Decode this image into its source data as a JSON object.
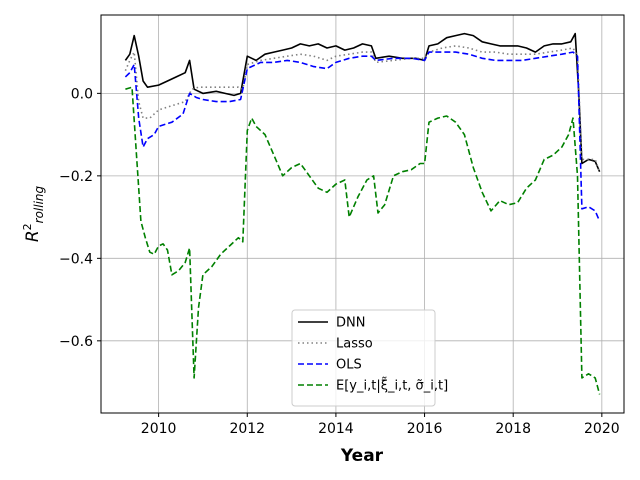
{
  "chart_data": {
    "type": "line",
    "xlabel": "Year",
    "ylabel": "R²_rolling",
    "xlim": [
      2008.7,
      2020.5
    ],
    "ylim": [
      -0.775,
      0.19
    ],
    "x_ticks": [
      2010,
      2012,
      2014,
      2016,
      2018,
      2020
    ],
    "y_ticks": [
      0.0,
      -0.2,
      -0.4,
      -0.6
    ],
    "y_tick_labels": [
      "0.0",
      "−0.2",
      "−0.4",
      "−0.6"
    ],
    "grid": true,
    "legend_position": "lower-center",
    "series": [
      {
        "name": "DNN",
        "color": "#000000",
        "dash": "solid",
        "points": [
          [
            2009.25,
            0.08
          ],
          [
            2009.35,
            0.095
          ],
          [
            2009.45,
            0.14
          ],
          [
            2009.55,
            0.09
          ],
          [
            2009.65,
            0.03
          ],
          [
            2009.75,
            0.015
          ],
          [
            2010.0,
            0.02
          ],
          [
            2010.2,
            0.03
          ],
          [
            2010.4,
            0.04
          ],
          [
            2010.6,
            0.05
          ],
          [
            2010.7,
            0.08
          ],
          [
            2010.8,
            0.01
          ],
          [
            2011.0,
            0.0
          ],
          [
            2011.3,
            0.005
          ],
          [
            2011.5,
            0.0
          ],
          [
            2011.7,
            -0.005
          ],
          [
            2011.85,
            0.0
          ],
          [
            2012.0,
            0.09
          ],
          [
            2012.2,
            0.08
          ],
          [
            2012.4,
            0.095
          ],
          [
            2012.6,
            0.1
          ],
          [
            2012.8,
            0.105
          ],
          [
            2013.0,
            0.11
          ],
          [
            2013.2,
            0.12
          ],
          [
            2013.4,
            0.115
          ],
          [
            2013.6,
            0.12
          ],
          [
            2013.8,
            0.11
          ],
          [
            2014.0,
            0.115
          ],
          [
            2014.2,
            0.105
          ],
          [
            2014.4,
            0.11
          ],
          [
            2014.6,
            0.12
          ],
          [
            2014.8,
            0.115
          ],
          [
            2014.9,
            0.085
          ],
          [
            2015.2,
            0.09
          ],
          [
            2015.5,
            0.085
          ],
          [
            2015.8,
            0.085
          ],
          [
            2016.0,
            0.08
          ],
          [
            2016.1,
            0.115
          ],
          [
            2016.3,
            0.12
          ],
          [
            2016.5,
            0.135
          ],
          [
            2016.7,
            0.14
          ],
          [
            2016.9,
            0.145
          ],
          [
            2017.1,
            0.14
          ],
          [
            2017.3,
            0.125
          ],
          [
            2017.5,
            0.12
          ],
          [
            2017.7,
            0.115
          ],
          [
            2017.9,
            0.115
          ],
          [
            2018.1,
            0.115
          ],
          [
            2018.3,
            0.11
          ],
          [
            2018.5,
            0.1
          ],
          [
            2018.7,
            0.115
          ],
          [
            2018.9,
            0.12
          ],
          [
            2019.1,
            0.12
          ],
          [
            2019.3,
            0.125
          ],
          [
            2019.4,
            0.145
          ],
          [
            2019.48,
            0.0
          ],
          [
            2019.55,
            -0.17
          ],
          [
            2019.7,
            -0.16
          ],
          [
            2019.85,
            -0.165
          ],
          [
            2019.95,
            -0.19
          ]
        ]
      },
      {
        "name": "Lasso",
        "color": "#808080",
        "dash": "dotted",
        "points": [
          [
            2009.25,
            0.055
          ],
          [
            2009.35,
            0.08
          ],
          [
            2009.45,
            0.1
          ],
          [
            2009.55,
            -0.02
          ],
          [
            2009.65,
            -0.06
          ],
          [
            2009.8,
            -0.06
          ],
          [
            2010.0,
            -0.04
          ],
          [
            2010.3,
            -0.03
          ],
          [
            2010.6,
            -0.02
          ],
          [
            2010.75,
            0.01
          ],
          [
            2010.9,
            0.015
          ],
          [
            2011.2,
            0.015
          ],
          [
            2011.5,
            0.015
          ],
          [
            2011.8,
            0.015
          ],
          [
            2011.9,
            0.01
          ],
          [
            2012.0,
            0.07
          ],
          [
            2012.3,
            0.08
          ],
          [
            2012.6,
            0.085
          ],
          [
            2012.9,
            0.09
          ],
          [
            2013.2,
            0.095
          ],
          [
            2013.5,
            0.09
          ],
          [
            2013.8,
            0.08
          ],
          [
            2014.0,
            0.09
          ],
          [
            2014.3,
            0.095
          ],
          [
            2014.6,
            0.1
          ],
          [
            2014.8,
            0.1
          ],
          [
            2014.9,
            0.075
          ],
          [
            2015.3,
            0.08
          ],
          [
            2015.7,
            0.085
          ],
          [
            2016.0,
            0.085
          ],
          [
            2016.1,
            0.1
          ],
          [
            2016.4,
            0.11
          ],
          [
            2016.7,
            0.115
          ],
          [
            2017.0,
            0.11
          ],
          [
            2017.3,
            0.1
          ],
          [
            2017.6,
            0.1
          ],
          [
            2017.9,
            0.095
          ],
          [
            2018.2,
            0.095
          ],
          [
            2018.5,
            0.095
          ],
          [
            2018.8,
            0.1
          ],
          [
            2019.1,
            0.105
          ],
          [
            2019.35,
            0.11
          ],
          [
            2019.45,
            0.09
          ],
          [
            2019.55,
            -0.16
          ],
          [
            2019.7,
            -0.16
          ],
          [
            2019.85,
            -0.16
          ],
          [
            2019.95,
            -0.19
          ]
        ]
      },
      {
        "name": "OLS",
        "color": "#0000ff",
        "dash": "dashed",
        "points": [
          [
            2009.25,
            0.04
          ],
          [
            2009.35,
            0.05
          ],
          [
            2009.45,
            0.07
          ],
          [
            2009.55,
            -0.06
          ],
          [
            2009.65,
            -0.13
          ],
          [
            2009.75,
            -0.11
          ],
          [
            2009.9,
            -0.1
          ],
          [
            2010.0,
            -0.08
          ],
          [
            2010.3,
            -0.07
          ],
          [
            2010.55,
            -0.05
          ],
          [
            2010.7,
            0.0
          ],
          [
            2010.85,
            -0.01
          ],
          [
            2011.0,
            -0.015
          ],
          [
            2011.3,
            -0.02
          ],
          [
            2011.6,
            -0.02
          ],
          [
            2011.85,
            -0.015
          ],
          [
            2012.0,
            0.06
          ],
          [
            2012.3,
            0.075
          ],
          [
            2012.6,
            0.075
          ],
          [
            2012.9,
            0.08
          ],
          [
            2013.2,
            0.075
          ],
          [
            2013.5,
            0.065
          ],
          [
            2013.8,
            0.06
          ],
          [
            2014.0,
            0.075
          ],
          [
            2014.3,
            0.085
          ],
          [
            2014.6,
            0.09
          ],
          [
            2014.8,
            0.09
          ],
          [
            2014.9,
            0.08
          ],
          [
            2015.3,
            0.085
          ],
          [
            2015.7,
            0.085
          ],
          [
            2016.0,
            0.08
          ],
          [
            2016.1,
            0.1
          ],
          [
            2016.4,
            0.1
          ],
          [
            2016.7,
            0.1
          ],
          [
            2017.0,
            0.095
          ],
          [
            2017.3,
            0.085
          ],
          [
            2017.6,
            0.08
          ],
          [
            2017.9,
            0.08
          ],
          [
            2018.2,
            0.08
          ],
          [
            2018.5,
            0.085
          ],
          [
            2018.8,
            0.09
          ],
          [
            2019.1,
            0.095
          ],
          [
            2019.35,
            0.1
          ],
          [
            2019.45,
            0.09
          ],
          [
            2019.55,
            -0.28
          ],
          [
            2019.7,
            -0.275
          ],
          [
            2019.85,
            -0.285
          ],
          [
            2019.95,
            -0.31
          ]
        ]
      },
      {
        "name": "E[y_i,t|ξ̃_i,t, σ̃_i,t]",
        "color": "#008000",
        "dash": "dashed",
        "points": [
          [
            2009.25,
            0.01
          ],
          [
            2009.4,
            0.015
          ],
          [
            2009.5,
            -0.15
          ],
          [
            2009.6,
            -0.31
          ],
          [
            2009.7,
            -0.35
          ],
          [
            2009.8,
            -0.385
          ],
          [
            2009.9,
            -0.39
          ],
          [
            2010.0,
            -0.37
          ],
          [
            2010.1,
            -0.365
          ],
          [
            2010.2,
            -0.38
          ],
          [
            2010.3,
            -0.44
          ],
          [
            2010.45,
            -0.43
          ],
          [
            2010.6,
            -0.41
          ],
          [
            2010.7,
            -0.375
          ],
          [
            2010.8,
            -0.69
          ],
          [
            2010.9,
            -0.52
          ],
          [
            2011.0,
            -0.44
          ],
          [
            2011.2,
            -0.42
          ],
          [
            2011.4,
            -0.39
          ],
          [
            2011.6,
            -0.37
          ],
          [
            2011.8,
            -0.35
          ],
          [
            2011.9,
            -0.36
          ],
          [
            2012.0,
            -0.09
          ],
          [
            2012.1,
            -0.06
          ],
          [
            2012.2,
            -0.08
          ],
          [
            2012.4,
            -0.1
          ],
          [
            2012.6,
            -0.15
          ],
          [
            2012.8,
            -0.2
          ],
          [
            2013.0,
            -0.18
          ],
          [
            2013.2,
            -0.17
          ],
          [
            2013.4,
            -0.2
          ],
          [
            2013.6,
            -0.23
          ],
          [
            2013.8,
            -0.24
          ],
          [
            2014.0,
            -0.22
          ],
          [
            2014.2,
            -0.21
          ],
          [
            2014.3,
            -0.3
          ],
          [
            2014.5,
            -0.25
          ],
          [
            2014.7,
            -0.21
          ],
          [
            2014.85,
            -0.2
          ],
          [
            2014.95,
            -0.29
          ],
          [
            2015.1,
            -0.27
          ],
          [
            2015.3,
            -0.2
          ],
          [
            2015.5,
            -0.19
          ],
          [
            2015.7,
            -0.185
          ],
          [
            2015.9,
            -0.17
          ],
          [
            2016.0,
            -0.17
          ],
          [
            2016.1,
            -0.07
          ],
          [
            2016.3,
            -0.06
          ],
          [
            2016.5,
            -0.055
          ],
          [
            2016.7,
            -0.07
          ],
          [
            2016.9,
            -0.1
          ],
          [
            2017.1,
            -0.18
          ],
          [
            2017.3,
            -0.24
          ],
          [
            2017.5,
            -0.285
          ],
          [
            2017.7,
            -0.26
          ],
          [
            2017.9,
            -0.27
          ],
          [
            2018.1,
            -0.265
          ],
          [
            2018.3,
            -0.23
          ],
          [
            2018.5,
            -0.21
          ],
          [
            2018.7,
            -0.16
          ],
          [
            2018.9,
            -0.15
          ],
          [
            2019.1,
            -0.13
          ],
          [
            2019.25,
            -0.1
          ],
          [
            2019.35,
            -0.06
          ],
          [
            2019.45,
            -0.2
          ],
          [
            2019.55,
            -0.69
          ],
          [
            2019.7,
            -0.68
          ],
          [
            2019.85,
            -0.69
          ],
          [
            2019.95,
            -0.73
          ]
        ]
      }
    ]
  }
}
